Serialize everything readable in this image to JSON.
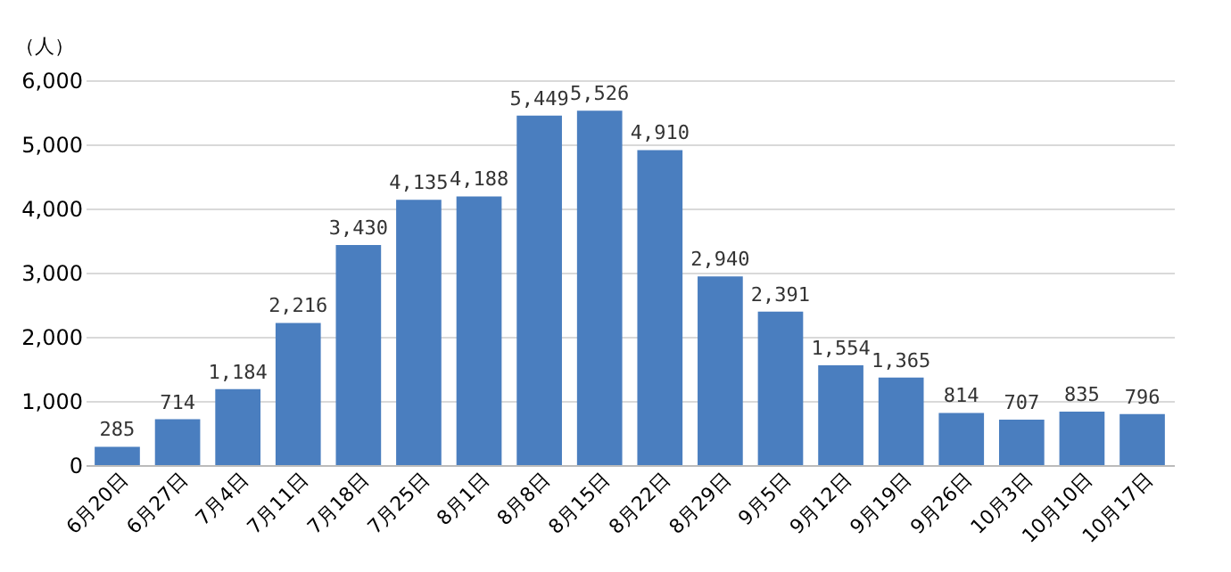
{
  "chart_data": {
    "type": "bar",
    "ylabel": "（人）",
    "categories": [
      "6月20日",
      "6月27日",
      "7月4日",
      "7月11日",
      "7月18日",
      "7月25日",
      "8月1日",
      "8月8日",
      "8月15日",
      "8月22日",
      "8月29日",
      "9月5日",
      "9月12日",
      "9月19日",
      "9月26日",
      "10月3日",
      "10月10日",
      "10月17日"
    ],
    "values": [
      285,
      714,
      1184,
      2216,
      3430,
      4135,
      4188,
      5449,
      5526,
      4910,
      2940,
      2391,
      1554,
      1365,
      814,
      707,
      835,
      796
    ],
    "color": "#4a7ebf",
    "ylim": [
      0,
      6000
    ],
    "yticks": [
      {
        "value": 0,
        "label": "0"
      },
      {
        "value": 1000,
        "label": "1,000"
      },
      {
        "value": 2000,
        "label": "2,000"
      },
      {
        "value": 3000,
        "label": "3,000"
      },
      {
        "value": 4000,
        "label": "4,000"
      },
      {
        "value": 5000,
        "label": "5,000"
      },
      {
        "value": 6000,
        "label": "6,000"
      }
    ],
    "value_labels": [
      "285",
      "714",
      "1,184",
      "2,216",
      "3,430",
      "4,135",
      "4,188",
      "5,449",
      "5,526",
      "4,910",
      "2,940",
      "2,391",
      "1,554",
      "1,365",
      "814",
      "707",
      "835",
      "796"
    ],
    "grid": "y"
  }
}
